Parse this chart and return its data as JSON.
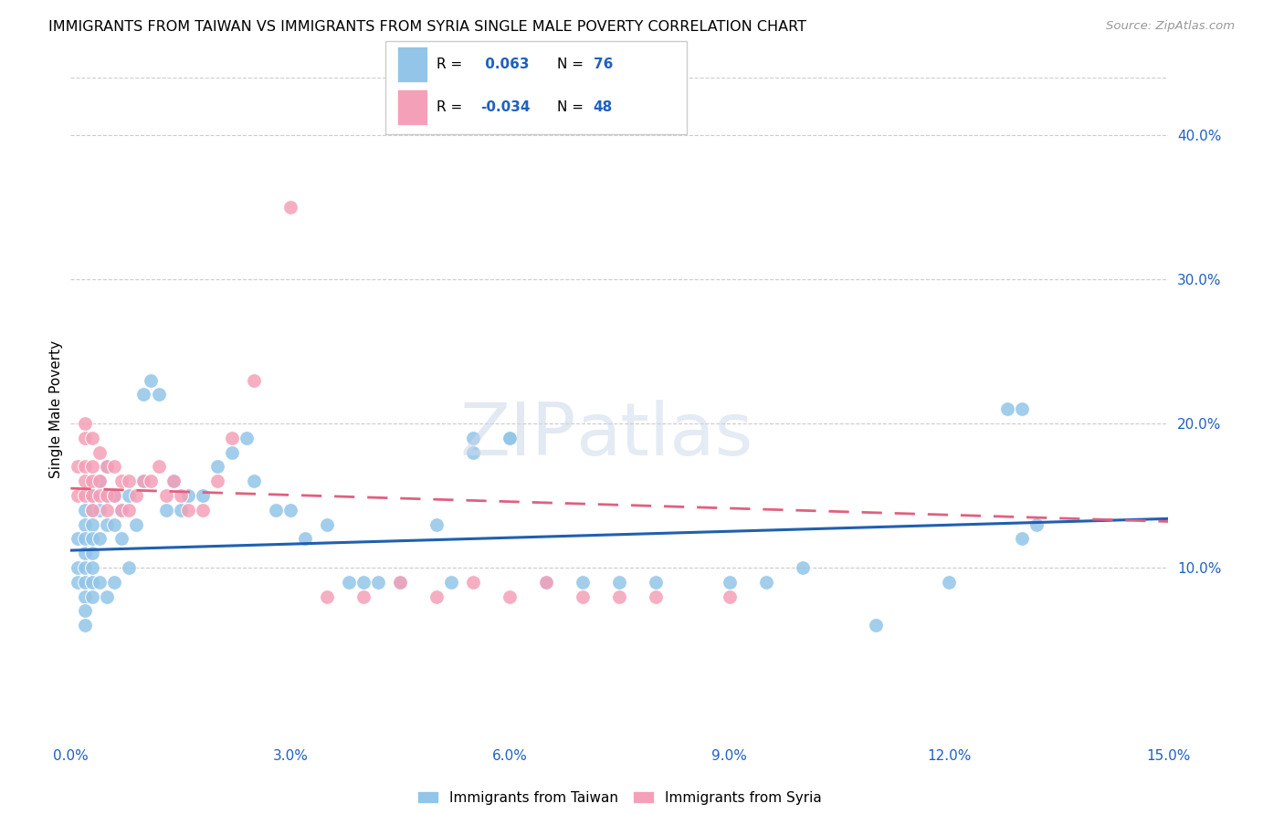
{
  "title": "IMMIGRANTS FROM TAIWAN VS IMMIGRANTS FROM SYRIA SINGLE MALE POVERTY CORRELATION CHART",
  "source": "Source: ZipAtlas.com",
  "ylabel": "Single Male Poverty",
  "right_yticks": [
    10.0,
    20.0,
    30.0,
    40.0
  ],
  "xlim": [
    0.0,
    0.15
  ],
  "ylim": [
    -0.02,
    0.44
  ],
  "taiwan_R": 0.063,
  "taiwan_N": 76,
  "syria_R": -0.034,
  "syria_N": 48,
  "taiwan_color": "#92C5E8",
  "syria_color": "#F4A0B8",
  "taiwan_line_color": "#2060B0",
  "syria_line_color": "#E06080",
  "taiwan_x": [
    0.001,
    0.001,
    0.001,
    0.002,
    0.002,
    0.002,
    0.002,
    0.002,
    0.002,
    0.002,
    0.002,
    0.002,
    0.003,
    0.003,
    0.003,
    0.003,
    0.003,
    0.003,
    0.003,
    0.003,
    0.004,
    0.004,
    0.004,
    0.004,
    0.005,
    0.005,
    0.005,
    0.005,
    0.006,
    0.006,
    0.006,
    0.007,
    0.007,
    0.008,
    0.008,
    0.009,
    0.01,
    0.01,
    0.011,
    0.012,
    0.013,
    0.014,
    0.015,
    0.016,
    0.018,
    0.02,
    0.022,
    0.024,
    0.025,
    0.028,
    0.03,
    0.032,
    0.035,
    0.038,
    0.04,
    0.042,
    0.045,
    0.05,
    0.052,
    0.055,
    0.06,
    0.065,
    0.07,
    0.075,
    0.08,
    0.09,
    0.095,
    0.1,
    0.11,
    0.12,
    0.128,
    0.13,
    0.13,
    0.132,
    0.055,
    0.06
  ],
  "taiwan_y": [
    0.12,
    0.1,
    0.09,
    0.14,
    0.13,
    0.12,
    0.11,
    0.1,
    0.09,
    0.08,
    0.07,
    0.06,
    0.15,
    0.14,
    0.13,
    0.12,
    0.11,
    0.1,
    0.09,
    0.08,
    0.16,
    0.14,
    0.12,
    0.09,
    0.17,
    0.15,
    0.13,
    0.08,
    0.15,
    0.13,
    0.09,
    0.14,
    0.12,
    0.15,
    0.1,
    0.13,
    0.22,
    0.16,
    0.23,
    0.22,
    0.14,
    0.16,
    0.14,
    0.15,
    0.15,
    0.17,
    0.18,
    0.19,
    0.16,
    0.14,
    0.14,
    0.12,
    0.13,
    0.09,
    0.09,
    0.09,
    0.09,
    0.13,
    0.09,
    0.19,
    0.19,
    0.09,
    0.09,
    0.09,
    0.09,
    0.09,
    0.09,
    0.1,
    0.06,
    0.09,
    0.21,
    0.21,
    0.12,
    0.13,
    0.18,
    0.19
  ],
  "syria_x": [
    0.001,
    0.001,
    0.002,
    0.002,
    0.002,
    0.002,
    0.002,
    0.003,
    0.003,
    0.003,
    0.003,
    0.003,
    0.004,
    0.004,
    0.004,
    0.005,
    0.005,
    0.005,
    0.006,
    0.006,
    0.007,
    0.007,
    0.008,
    0.008,
    0.009,
    0.01,
    0.011,
    0.012,
    0.013,
    0.014,
    0.015,
    0.016,
    0.018,
    0.02,
    0.022,
    0.025,
    0.03,
    0.035,
    0.04,
    0.045,
    0.05,
    0.055,
    0.06,
    0.065,
    0.07,
    0.075,
    0.08,
    0.09
  ],
  "syria_y": [
    0.17,
    0.15,
    0.2,
    0.19,
    0.17,
    0.16,
    0.15,
    0.19,
    0.17,
    0.16,
    0.15,
    0.14,
    0.18,
    0.16,
    0.15,
    0.17,
    0.15,
    0.14,
    0.17,
    0.15,
    0.16,
    0.14,
    0.16,
    0.14,
    0.15,
    0.16,
    0.16,
    0.17,
    0.15,
    0.16,
    0.15,
    0.14,
    0.14,
    0.16,
    0.19,
    0.23,
    0.35,
    0.08,
    0.08,
    0.09,
    0.08,
    0.09,
    0.08,
    0.09,
    0.08,
    0.08,
    0.08,
    0.08
  ]
}
